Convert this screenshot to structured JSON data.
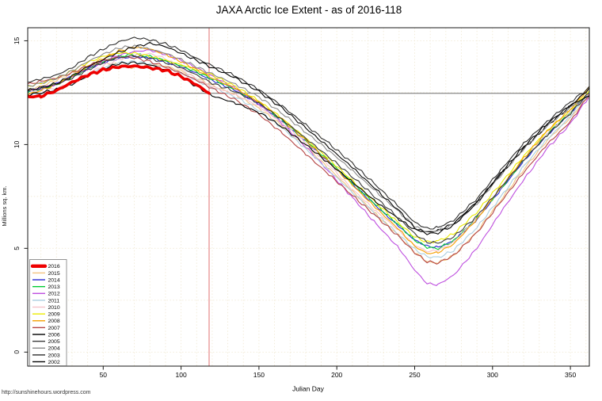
{
  "title": "JAXA Arctic Ice Extent - as of 2016-118",
  "watermark": "http://sunshinehours.wordpress.com",
  "chart_data": {
    "type": "line",
    "title": "JAXA Arctic Ice Extent - as of 2016-118",
    "xlabel": "Julian Day",
    "ylabel": "Millions sq. km.",
    "xlim": [
      1,
      366
    ],
    "ylim": [
      0,
      15.6
    ],
    "x_ticks": [
      50,
      100,
      150,
      200,
      250,
      300,
      350
    ],
    "y_ticks": [
      0,
      5,
      10,
      15
    ],
    "grid": {
      "vertical_step_days": 10,
      "horizontal_step": 2.5,
      "color": "#f1ead6",
      "style": "dotted"
    },
    "reference_lines": {
      "horizontal_value": 12.47,
      "horizontal_color": "#6e6e6e",
      "vertical_day": 118,
      "vertical_color": "#e07070"
    },
    "legend_position": "bottom-left",
    "series": [
      {
        "name": "2016",
        "color": "#ee0000",
        "thick": true,
        "days": [
          1,
          10,
          20,
          30,
          40,
          50,
          60,
          70,
          80,
          90,
          100,
          110,
          118
        ],
        "values": [
          12.3,
          12.33,
          12.6,
          13.0,
          13.35,
          13.6,
          13.75,
          13.78,
          13.7,
          13.58,
          13.28,
          12.88,
          12.47
        ]
      },
      {
        "name": "2015",
        "color": "#f2c480",
        "thick": false,
        "days": [
          1,
          10,
          20,
          30,
          40,
          50,
          60,
          70,
          80,
          90,
          100,
          110,
          120,
          135,
          150,
          165,
          180,
          195,
          210,
          225,
          240,
          250,
          258,
          265,
          275,
          290,
          305,
          320,
          335,
          350,
          365
        ],
        "values": [
          12.6,
          12.8,
          13.1,
          13.45,
          13.8,
          13.92,
          13.85,
          13.7,
          13.85,
          13.78,
          13.55,
          13.2,
          12.85,
          12.4,
          11.75,
          10.9,
          9.9,
          8.85,
          7.75,
          6.65,
          5.6,
          4.8,
          4.35,
          4.3,
          4.65,
          5.8,
          7.3,
          8.8,
          10.2,
          11.3,
          12.6
        ]
      },
      {
        "name": "2014",
        "color": "#2a2ad4",
        "thick": false,
        "days": [
          1,
          10,
          20,
          30,
          40,
          50,
          60,
          70,
          80,
          90,
          100,
          110,
          120,
          135,
          150,
          165,
          180,
          195,
          210,
          225,
          240,
          250,
          258,
          265,
          275,
          290,
          305,
          320,
          335,
          350,
          365
        ],
        "values": [
          12.55,
          12.7,
          12.95,
          13.3,
          13.65,
          13.95,
          14.15,
          14.22,
          14.18,
          14.0,
          13.75,
          13.45,
          13.1,
          12.6,
          11.95,
          11.1,
          10.15,
          9.15,
          8.1,
          7.05,
          6.05,
          5.4,
          5.1,
          5.05,
          5.35,
          6.4,
          7.8,
          9.2,
          10.45,
          11.55,
          12.7
        ]
      },
      {
        "name": "2013",
        "color": "#00cc33",
        "thick": false,
        "days": [
          1,
          10,
          20,
          30,
          40,
          50,
          60,
          70,
          80,
          90,
          100,
          110,
          120,
          135,
          150,
          165,
          180,
          195,
          210,
          225,
          240,
          250,
          258,
          265,
          275,
          290,
          305,
          320,
          335,
          350,
          365
        ],
        "values": [
          12.5,
          12.65,
          12.9,
          13.25,
          13.65,
          14.0,
          14.25,
          14.35,
          14.25,
          14.05,
          13.8,
          13.5,
          13.15,
          12.65,
          12.0,
          11.15,
          10.2,
          9.2,
          8.15,
          7.1,
          6.1,
          5.4,
          5.05,
          5.0,
          5.35,
          6.45,
          7.85,
          9.25,
          10.5,
          11.55,
          12.75
        ]
      },
      {
        "name": "2012",
        "color": "#be4fdf",
        "thick": false,
        "days": [
          1,
          10,
          20,
          30,
          40,
          50,
          60,
          70,
          80,
          90,
          100,
          110,
          120,
          135,
          150,
          165,
          180,
          195,
          210,
          225,
          240,
          250,
          258,
          265,
          275,
          290,
          305,
          320,
          335,
          350,
          365
        ],
        "values": [
          12.6,
          12.7,
          12.9,
          13.25,
          13.65,
          14.0,
          14.3,
          14.48,
          14.55,
          14.35,
          14.05,
          13.7,
          13.3,
          12.7,
          11.95,
          11.0,
          9.9,
          8.7,
          7.45,
          6.2,
          5.0,
          3.95,
          3.3,
          3.25,
          3.7,
          5.0,
          6.7,
          8.3,
          9.8,
          11.0,
          12.65
        ]
      },
      {
        "name": "2011",
        "color": "#abcfe0",
        "thick": false,
        "days": [
          1,
          10,
          20,
          30,
          40,
          50,
          60,
          70,
          80,
          90,
          100,
          110,
          120,
          135,
          150,
          165,
          180,
          195,
          210,
          225,
          240,
          250,
          258,
          265,
          275,
          290,
          305,
          320,
          335,
          350,
          365
        ],
        "values": [
          12.35,
          12.45,
          12.65,
          12.95,
          13.35,
          13.7,
          13.95,
          14.0,
          13.9,
          13.7,
          13.45,
          13.1,
          12.75,
          12.3,
          11.65,
          10.8,
          9.8,
          8.75,
          7.7,
          6.65,
          5.65,
          4.95,
          4.6,
          4.55,
          4.9,
          6.0,
          7.45,
          8.95,
          10.25,
          11.35,
          12.8
        ]
      },
      {
        "name": "2010",
        "color": "#f5c2ca",
        "thick": false,
        "days": [
          1,
          10,
          20,
          30,
          40,
          50,
          60,
          70,
          80,
          90,
          100,
          110,
          120,
          135,
          150,
          165,
          180,
          195,
          210,
          225,
          240,
          250,
          258,
          265,
          275,
          290,
          305,
          320,
          335,
          350,
          365
        ],
        "values": [
          12.6,
          12.55,
          12.7,
          13.0,
          13.4,
          13.8,
          14.1,
          14.3,
          14.38,
          14.15,
          13.65,
          13.15,
          12.8,
          12.4,
          11.85,
          11.05,
          10.1,
          9.0,
          7.85,
          6.8,
          5.85,
          5.15,
          4.85,
          4.9,
          5.3,
          6.45,
          7.9,
          9.3,
          10.55,
          11.6,
          12.7
        ]
      },
      {
        "name": "2009",
        "color": "#ecec00",
        "thick": false,
        "days": [
          1,
          10,
          20,
          30,
          40,
          50,
          60,
          70,
          80,
          90,
          100,
          110,
          120,
          135,
          150,
          165,
          180,
          195,
          210,
          225,
          240,
          250,
          258,
          265,
          275,
          290,
          305,
          320,
          335,
          350,
          365
        ],
        "values": [
          12.8,
          12.95,
          13.2,
          13.55,
          13.95,
          14.25,
          14.42,
          14.4,
          14.25,
          14.05,
          13.85,
          13.6,
          13.35,
          12.8,
          12.1,
          11.25,
          10.3,
          9.3,
          8.25,
          7.2,
          6.2,
          5.55,
          5.3,
          5.35,
          5.7,
          6.75,
          8.1,
          9.45,
          10.65,
          11.65,
          12.8
        ]
      },
      {
        "name": "2008",
        "color": "#f5a000",
        "thick": false,
        "days": [
          1,
          10,
          20,
          30,
          40,
          50,
          60,
          70,
          80,
          90,
          100,
          110,
          120,
          135,
          150,
          165,
          180,
          195,
          210,
          225,
          240,
          250,
          258,
          265,
          275,
          290,
          305,
          320,
          335,
          350,
          365
        ],
        "values": [
          12.4,
          12.6,
          12.9,
          13.3,
          13.75,
          14.15,
          14.5,
          14.7,
          14.6,
          14.35,
          14.0,
          13.6,
          13.2,
          12.7,
          12.05,
          11.2,
          10.2,
          9.15,
          8.05,
          6.95,
          5.9,
          5.1,
          4.75,
          4.8,
          5.2,
          6.4,
          7.9,
          9.35,
          10.65,
          11.7,
          13.0
        ]
      },
      {
        "name": "2007",
        "color": "#b54545",
        "thick": false,
        "days": [
          1,
          10,
          20,
          30,
          40,
          50,
          60,
          70,
          80,
          90,
          100,
          110,
          120,
          135,
          150,
          165,
          180,
          195,
          210,
          225,
          240,
          250,
          258,
          265,
          275,
          290,
          305,
          320,
          335,
          350,
          365
        ],
        "values": [
          12.9,
          13.05,
          13.2,
          13.45,
          13.8,
          14.05,
          14.22,
          14.18,
          14.0,
          13.75,
          13.45,
          13.1,
          12.7,
          12.15,
          11.45,
          10.55,
          9.55,
          8.55,
          7.55,
          6.55,
          5.55,
          4.8,
          4.35,
          4.3,
          4.65,
          5.75,
          7.2,
          8.65,
          10.0,
          11.1,
          12.75
        ]
      },
      {
        "name": "2006",
        "color": "#000000",
        "thick": false,
        "days": [
          1,
          10,
          20,
          30,
          40,
          50,
          60,
          70,
          80,
          90,
          100,
          110,
          120,
          135,
          150,
          165,
          180,
          195,
          210,
          225,
          240,
          250,
          258,
          265,
          275,
          290,
          305,
          320,
          335,
          350,
          365
        ],
        "values": [
          12.4,
          12.5,
          12.65,
          12.9,
          13.3,
          13.65,
          13.9,
          13.95,
          13.85,
          13.6,
          13.25,
          12.8,
          12.35,
          12.0,
          11.55,
          10.85,
          10.0,
          9.1,
          8.2,
          7.25,
          6.4,
          5.9,
          5.78,
          5.85,
          6.2,
          7.25,
          8.55,
          9.8,
          10.9,
          11.85,
          12.9
        ]
      },
      {
        "name": "2005",
        "color": "#3a3a3a",
        "thick": false,
        "days": [
          1,
          10,
          20,
          30,
          40,
          50,
          60,
          70,
          80,
          90,
          100,
          110,
          120,
          135,
          150,
          165,
          180,
          195,
          210,
          225,
          240,
          250,
          258,
          265,
          275,
          290,
          305,
          320,
          335,
          350,
          365
        ],
        "values": [
          12.6,
          12.7,
          12.9,
          13.2,
          13.6,
          13.95,
          14.2,
          14.28,
          14.15,
          13.95,
          13.7,
          13.35,
          12.95,
          12.55,
          12.0,
          11.2,
          10.3,
          9.4,
          8.45,
          7.45,
          6.45,
          5.7,
          5.3,
          5.25,
          5.55,
          6.55,
          7.9,
          9.25,
          10.45,
          11.5,
          12.75
        ]
      },
      {
        "name": "2004",
        "color": "#8a8a8a",
        "thick": false,
        "days": [
          1,
          10,
          20,
          30,
          40,
          50,
          60,
          70,
          80,
          90,
          100,
          110,
          120,
          135,
          150,
          165,
          180,
          195,
          210,
          225,
          240,
          250,
          258,
          265,
          275,
          290,
          305,
          320,
          335,
          350,
          365
        ],
        "values": [
          12.8,
          12.95,
          13.2,
          13.55,
          14.0,
          14.35,
          14.65,
          14.75,
          14.6,
          14.4,
          14.1,
          13.75,
          13.4,
          12.9,
          12.3,
          11.5,
          10.6,
          9.7,
          8.75,
          7.75,
          6.75,
          6.05,
          5.8,
          5.85,
          6.15,
          7.15,
          8.5,
          9.8,
          10.9,
          11.8,
          12.5
        ]
      },
      {
        "name": "2003",
        "color": "#2e2e2e",
        "thick": false,
        "days": [
          1,
          10,
          20,
          30,
          40,
          50,
          60,
          70,
          80,
          90,
          100,
          110,
          120,
          135,
          150,
          165,
          180,
          195,
          210,
          225,
          240,
          250,
          258,
          265,
          275,
          290,
          305,
          320,
          335,
          350,
          365
        ],
        "values": [
          13.0,
          13.15,
          13.35,
          13.7,
          14.2,
          14.6,
          14.95,
          15.15,
          15.05,
          14.85,
          14.55,
          14.15,
          13.8,
          13.3,
          12.65,
          11.85,
          10.95,
          10.05,
          9.1,
          8.05,
          7.0,
          6.25,
          5.95,
          6.0,
          6.35,
          7.4,
          8.75,
          10.05,
          11.1,
          12.05,
          12.9
        ]
      },
      {
        "name": "2002",
        "color": "#050505",
        "thick": false,
        "days": [
          1,
          10,
          20,
          30,
          40,
          50,
          60,
          70,
          80,
          90,
          100,
          110,
          120,
          135,
          150,
          165,
          180,
          195,
          210,
          225,
          240,
          250,
          258,
          265,
          275,
          290,
          305,
          320,
          335,
          350,
          365
        ],
        "values": [
          12.6,
          12.75,
          12.95,
          13.3,
          13.75,
          14.1,
          14.45,
          14.7,
          14.88,
          14.72,
          14.4,
          14.05,
          13.7,
          13.2,
          12.55,
          11.75,
          10.8,
          9.85,
          8.9,
          7.85,
          6.8,
          6.0,
          5.7,
          5.75,
          6.1,
          7.2,
          8.6,
          9.9,
          11.0,
          11.9,
          12.45
        ]
      }
    ],
    "draw_order": [
      "2015",
      "2014",
      "2013",
      "2012",
      "2011",
      "2010",
      "2009",
      "2008",
      "2007",
      "2006",
      "2005",
      "2004",
      "2003",
      "2002",
      "2016"
    ]
  },
  "legend": {
    "order": [
      "2016",
      "2015",
      "2014",
      "2013",
      "2012",
      "2011",
      "2010",
      "2009",
      "2008",
      "2007",
      "2006",
      "2005",
      "2004",
      "2003",
      "2002"
    ]
  }
}
